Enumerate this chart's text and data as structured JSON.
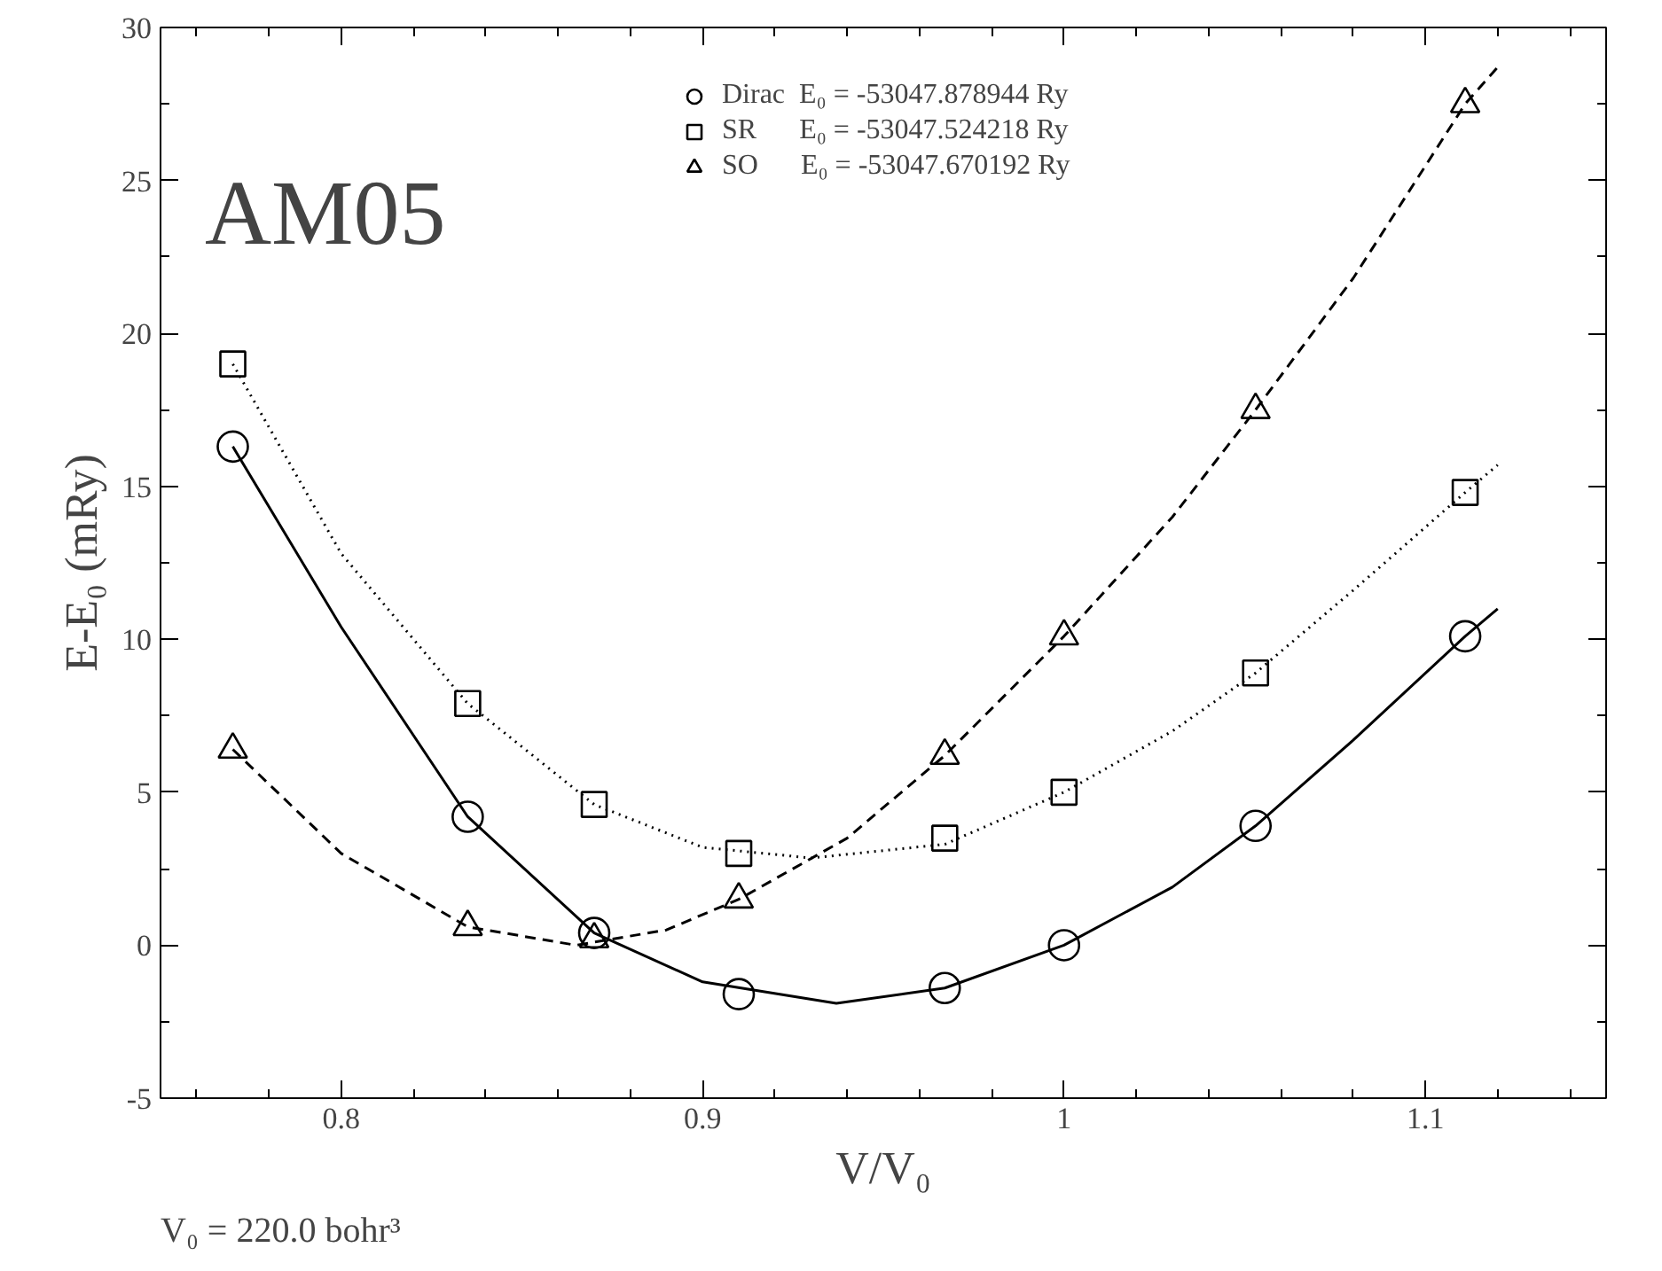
{
  "chart_data": {
    "type": "scatter",
    "xlabel": "V/V₀",
    "ylabel": "E-E₀ (mRy)",
    "annotations": [
      "AM05",
      "V₀ = 220.0 bohr³"
    ],
    "xlim": [
      0.75,
      1.15
    ],
    "xticks": [
      0.8,
      0.9,
      {
        "value": 1.0,
        "label": "1"
      },
      1.1
    ],
    "ylim": [
      -5,
      30
    ],
    "yticks": [
      -5,
      0,
      5,
      10,
      15,
      20,
      25,
      30
    ],
    "grid": false,
    "legend": "top right",
    "x": [
      0.77,
      0.835,
      0.87,
      0.91,
      0.967,
      1.0,
      1.053,
      1.111
    ],
    "series": [
      {
        "name": "Dirac  E₀ = -53047.878944 Ry",
        "color": "#000000",
        "marker": "circle",
        "values": [
          16.3,
          4.2,
          0.4,
          -1.6,
          -1.4,
          0.0,
          3.9,
          10.1
        ]
      },
      {
        "name": "SR      E₀ = -53047.524218 Ry",
        "color": "#000000",
        "marker": "square",
        "values": [
          19.0,
          7.9,
          4.6,
          3.0,
          3.5,
          5.0,
          8.9,
          14.8
        ]
      },
      {
        "name": "SO      E₀ = -53047.670192 Ry",
        "color": "#000000",
        "marker": "triangle",
        "values": [
          6.4,
          0.6,
          0.2,
          1.5,
          6.2,
          10.1,
          17.5,
          27.5
        ]
      },
      {
        "type": "line",
        "color": "#000000",
        "line_style": "solid",
        "x": [
          0.77,
          0.8,
          0.835,
          0.87,
          0.9,
          0.937,
          0.967,
          1.0,
          1.03,
          1.053,
          1.08,
          1.111,
          1.12
        ],
        "values": [
          16.3,
          10.4,
          4.2,
          0.4,
          -1.2,
          -1.9,
          -1.4,
          0.0,
          1.9,
          3.9,
          6.7,
          10.1,
          11.0
        ]
      },
      {
        "type": "line",
        "color": "#000000",
        "line_style": "dotted",
        "x": [
          0.77,
          0.8,
          0.835,
          0.87,
          0.9,
          0.93,
          0.967,
          1.0,
          1.03,
          1.053,
          1.08,
          1.111,
          1.12
        ],
        "values": [
          19.0,
          12.8,
          7.9,
          4.6,
          3.2,
          2.85,
          3.3,
          5.0,
          7.0,
          8.9,
          11.6,
          14.8,
          15.7
        ]
      },
      {
        "type": "line",
        "color": "#000000",
        "line_style": "dashed",
        "x": [
          0.77,
          0.8,
          0.835,
          0.865,
          0.89,
          0.91,
          0.94,
          0.967,
          1.0,
          1.03,
          1.053,
          1.08,
          1.111,
          1.12
        ],
        "values": [
          6.4,
          3.0,
          0.6,
          0.0,
          0.5,
          1.5,
          3.5,
          6.2,
          10.1,
          14.0,
          17.5,
          21.8,
          27.5,
          28.7
        ]
      }
    ]
  }
}
